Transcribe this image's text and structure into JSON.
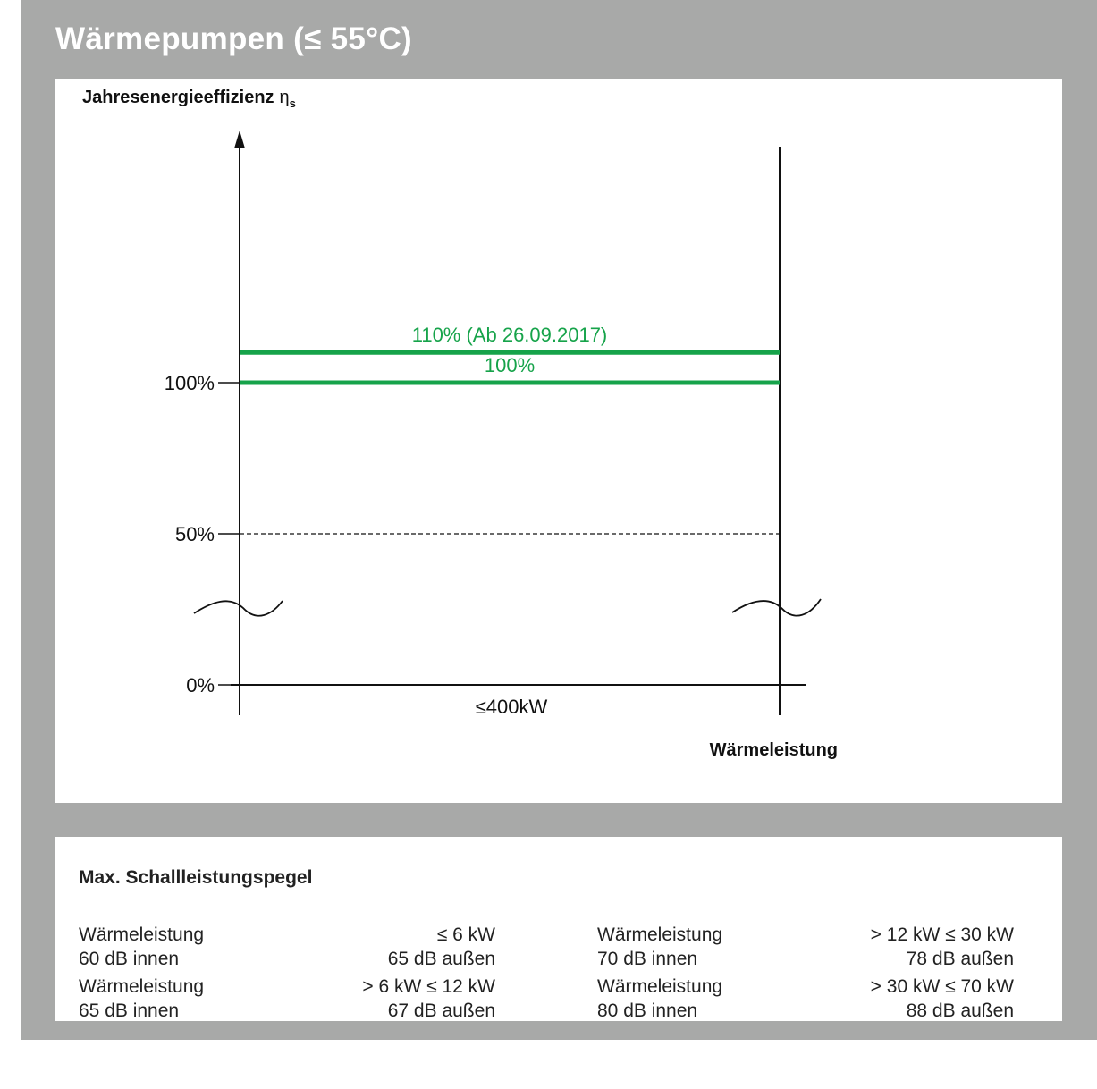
{
  "title": "Wärmepumpen (≤ 55°C)",
  "colors": {
    "frame": "#a8a9a8",
    "accent": "#16a34a",
    "line": "#111111"
  },
  "chart_data": {
    "type": "line",
    "ylabel": "Jahresenergieeffizienz",
    "ylabel_symbol": "η",
    "ylabel_subscript": "s",
    "xlabel": "Wärmeleistung",
    "x_tick_label": "≤400kW",
    "y_ticks": [
      {
        "value": 0,
        "label": "0%"
      },
      {
        "value": 50,
        "label": "50%"
      },
      {
        "value": 100,
        "label": "100%"
      }
    ],
    "axis_break": true,
    "series": [
      {
        "name": "110% (Ab 26.09.2017)",
        "values": [
          110,
          110
        ],
        "style": "solid",
        "color": "#16a34a"
      },
      {
        "name": "100%",
        "values": [
          100,
          100
        ],
        "style": "solid",
        "color": "#16a34a"
      },
      {
        "name": "",
        "values": [
          50,
          50
        ],
        "style": "dashed",
        "color": "#111111"
      }
    ],
    "x": [
      0,
      400
    ]
  },
  "noise_table": {
    "title": "Max. Schallleistungspegel",
    "entries": [
      {
        "label": "Wärmeleistung",
        "range": "≤ 6 kW",
        "inside": "60 dB innen",
        "outside": "65 dB außen"
      },
      {
        "label": "Wärmeleistung",
        "range": "> 6 kW ≤ 12 kW",
        "inside": "65 dB innen",
        "outside": "67 dB außen"
      },
      {
        "label": "Wärmeleistung",
        "range": "> 12 kW ≤ 30 kW",
        "inside": "70 dB innen",
        "outside": "78 dB außen"
      },
      {
        "label": "Wärmeleistung",
        "range": "> 30 kW ≤ 70 kW",
        "inside": "80 dB innen",
        "outside": "88 dB außen"
      }
    ]
  }
}
